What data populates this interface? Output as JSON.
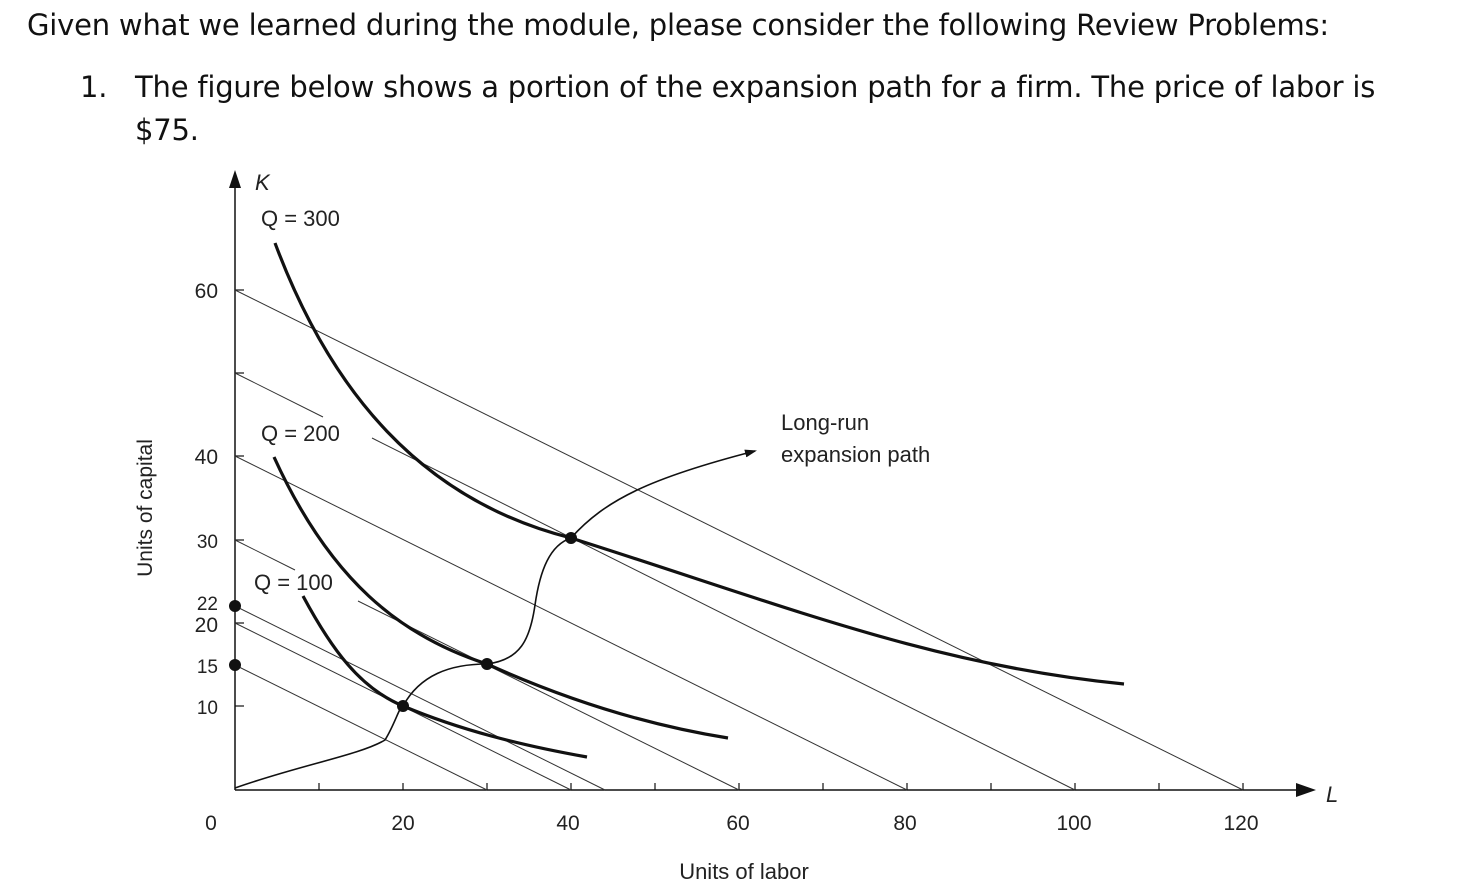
{
  "intro": "Given what we learned during the module, please consider the following Review Problems:",
  "problem": {
    "number": "1.",
    "text": "The figure below shows a portion of the expansion path for a firm. The price of labor is $75."
  },
  "figure": {
    "y_axis_symbol": "K",
    "x_axis_symbol": "L",
    "y_axis_label": "Units of capital",
    "x_axis_label": "Units of labor",
    "origin_label": "0",
    "x_ticks": [
      "20",
      "40",
      "60",
      "80",
      "100",
      "120"
    ],
    "y_ticks": [
      "60",
      "40",
      "30",
      "22",
      "20",
      "15",
      "10"
    ],
    "isoquant_labels": [
      "Q = 300",
      "Q = 200",
      "Q = 100"
    ],
    "expansion_label_line1": "Long-run",
    "expansion_label_line2": "expansion path"
  }
}
